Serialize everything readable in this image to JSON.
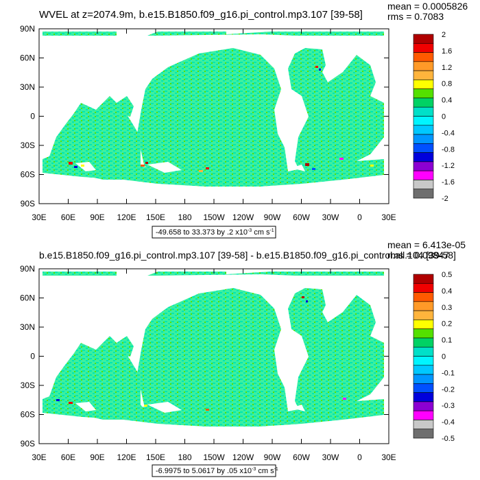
{
  "chart_data": [
    {
      "type": "heatmap",
      "title": "WVEL at z=2074.9m, b.e15.B1850.f09_g16.pi_control.mp3.107 [39-58]",
      "stats": {
        "mean": "mean = 0.0005826",
        "rms": "rms = 0.7083"
      },
      "range_label": "-49.658 to 33.373 by .2 x10",
      "range_exp": "-3",
      "range_unit_pre": " cm s",
      "range_unit_exp": "-1",
      "x_ticks": [
        "30E",
        "60E",
        "90E",
        "120E",
        "150E",
        "180",
        "150W",
        "120W",
        "90W",
        "60W",
        "30W",
        "0",
        "30E"
      ],
      "y_ticks": [
        "90N",
        "60N",
        "30N",
        "0",
        "30S",
        "60S",
        "90S"
      ],
      "colorbar": {
        "labels": [
          "2",
          "1.6",
          "1.2",
          "0.8",
          "0.4",
          "0",
          "-0.4",
          "-0.8",
          "-1.2",
          "-1.6",
          "-2"
        ],
        "colors": [
          "#b00000",
          "#f00000",
          "#ff5a00",
          "#ff9a28",
          "#ffb43c",
          "#ffff00",
          "#54e000",
          "#00d264",
          "#00e0c8",
          "#00f5ff",
          "#00c8ff",
          "#0096ff",
          "#0050ff",
          "#0000dc",
          "#8c00d2",
          "#ff00ff",
          "#c8c8c8",
          "#6e6e6e"
        ]
      }
    },
    {
      "type": "heatmap",
      "title": "b.e15.B1850.f09_g16.pi_control.mp3.107 [39-58] - b.e15.B1850.f09_g16.pi_control.all.104 [39-58]",
      "stats": {
        "mean": "mean = 6.413e-05",
        "rms": "rms = 0.09847"
      },
      "range_label": "-6.9975 to 5.0617 by .05 x10",
      "range_exp": "-3",
      "range_unit_pre": " cm s",
      "range_unit_exp": "-1",
      "x_ticks": [
        "30E",
        "60E",
        "90E",
        "120E",
        "150E",
        "180",
        "150W",
        "120W",
        "90W",
        "60W",
        "30W",
        "0",
        "30E"
      ],
      "y_ticks": [
        "90N",
        "60N",
        "30N",
        "0",
        "30S",
        "60S",
        "90S"
      ],
      "colorbar": {
        "labels": [
          "0.5",
          "0.4",
          "0.3",
          "0.2",
          "0.1",
          "0",
          "-0.1",
          "-0.2",
          "-0.3",
          "-0.4",
          "-0.5"
        ],
        "colors": [
          "#b00000",
          "#f00000",
          "#ff5a00",
          "#ff9a28",
          "#ffb43c",
          "#ffff00",
          "#54e000",
          "#00d264",
          "#00e0c8",
          "#00f5ff",
          "#00c8ff",
          "#0096ff",
          "#0050ff",
          "#0000dc",
          "#8c00d2",
          "#ff00ff",
          "#c8c8c8",
          "#6e6e6e"
        ]
      }
    }
  ],
  "colors": {
    "ocean": "#3cf0a0",
    "ocean_alt": "#00e6b4",
    "land": "#ffffff"
  }
}
